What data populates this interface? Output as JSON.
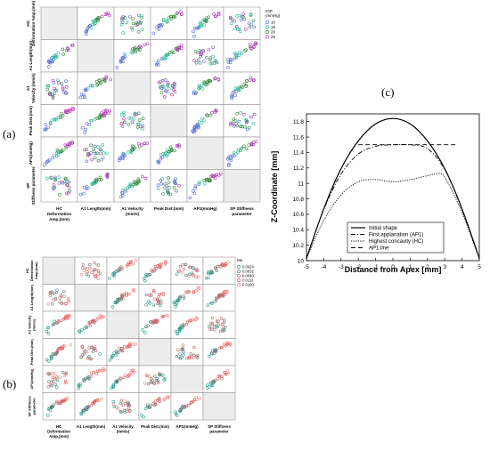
{
  "labels": {
    "a": "(a)",
    "b": "(b)",
    "c": "(c)"
  },
  "matrix_a": {
    "row_labels": [
      "HC Deformation Amp.(mm)",
      "A1 Length(mm)",
      "A1 Velocity (mm/s)",
      "Peak Dist.(mm)",
      "AP1(mmHg)",
      "SP Stiffness parameter"
    ],
    "col_labels": [
      "HC Deformation Amp.(mm)",
      "A1 Length(mm)",
      "A1 Velocity (mm/s)",
      "Peak Dist.(mm)",
      "AP1(mmHg)",
      "SP Stiffness parameter"
    ],
    "legend_title": "IOP (mmHg)",
    "legend": [
      {
        "label": "10",
        "color": "#5a6fd6"
      },
      {
        "label": "15",
        "color": "#2fb89a"
      },
      {
        "label": "20",
        "color": "#3b8a3e"
      },
      {
        "label": "25",
        "color": "#b03ab5"
      }
    ]
  },
  "matrix_b": {
    "row_labels": [
      "HC Deformation Amp.(mm)",
      "A1 Length(mm)",
      "A1 Velocity (mm/s)",
      "Peak Dist.(mm)",
      "AP1(mmHg)",
      "SP Stiffness parameter"
    ],
    "col_labels": [
      "HC Deformation Amp.(mm)",
      "A1 Length(mm)",
      "A1 Velocity (mm/s)",
      "Peak Dist.(mm)",
      "AP1(mmHg)",
      "SP Stiffness parameter"
    ],
    "legend_title": "Mu",
    "legend": [
      {
        "label": "0.0024",
        "color": "#2a9d8f"
      },
      {
        "label": "0.0032",
        "color": "#5f7f7f"
      },
      {
        "label": "0.0040",
        "color": "#c06a6a"
      },
      {
        "label": "0.0112",
        "color": "#e05a5a"
      },
      {
        "label": "0.0160",
        "color": "#f28b8b"
      }
    ]
  },
  "chart_data": {
    "type": "line",
    "title": "",
    "xlabel": "Distance from Apex [mm]",
    "ylabel": "Z-Coordinate [mm]",
    "xlim": [
      -5,
      5
    ],
    "ylim": [
      10,
      11.9
    ],
    "xticks": [
      -5,
      -4,
      -3,
      -2,
      -1,
      0,
      1,
      2,
      3,
      4,
      5
    ],
    "yticks": [
      10,
      10.2,
      10.4,
      10.6,
      10.8,
      11,
      11.2,
      11.4,
      11.6,
      11.8
    ],
    "legend_position": "bottom-center",
    "series": [
      {
        "name": "Initial shape",
        "style": "solid",
        "x": [
          -5,
          -4,
          -3,
          -2,
          -1,
          0,
          1,
          2,
          3,
          4,
          5
        ],
        "y": [
          10.03,
          10.67,
          11.19,
          11.55,
          11.77,
          11.84,
          11.77,
          11.55,
          11.19,
          10.67,
          10.03
        ]
      },
      {
        "name": "First applanation (AP1)",
        "style": "dashdot",
        "x": [
          -5,
          -4,
          -3,
          -2,
          -1,
          0,
          1,
          2,
          3,
          4,
          5
        ],
        "y": [
          10.03,
          10.66,
          11.12,
          11.38,
          11.48,
          11.5,
          11.5,
          11.45,
          11.18,
          10.66,
          10.03
        ]
      },
      {
        "name": "Highest concavity (HC)",
        "style": "dotted",
        "x": [
          -5,
          -4,
          -3,
          -2,
          -1,
          0,
          1,
          2,
          2.5,
          3,
          4,
          5
        ],
        "y": [
          10.03,
          10.52,
          10.85,
          11.02,
          11.05,
          11.02,
          11.05,
          11.1,
          11.12,
          11.08,
          10.62,
          10.03
        ]
      },
      {
        "name": "AP1 line",
        "style": "dashed",
        "x": [
          -2,
          3.7
        ],
        "y": [
          11.5,
          11.5
        ]
      }
    ]
  }
}
